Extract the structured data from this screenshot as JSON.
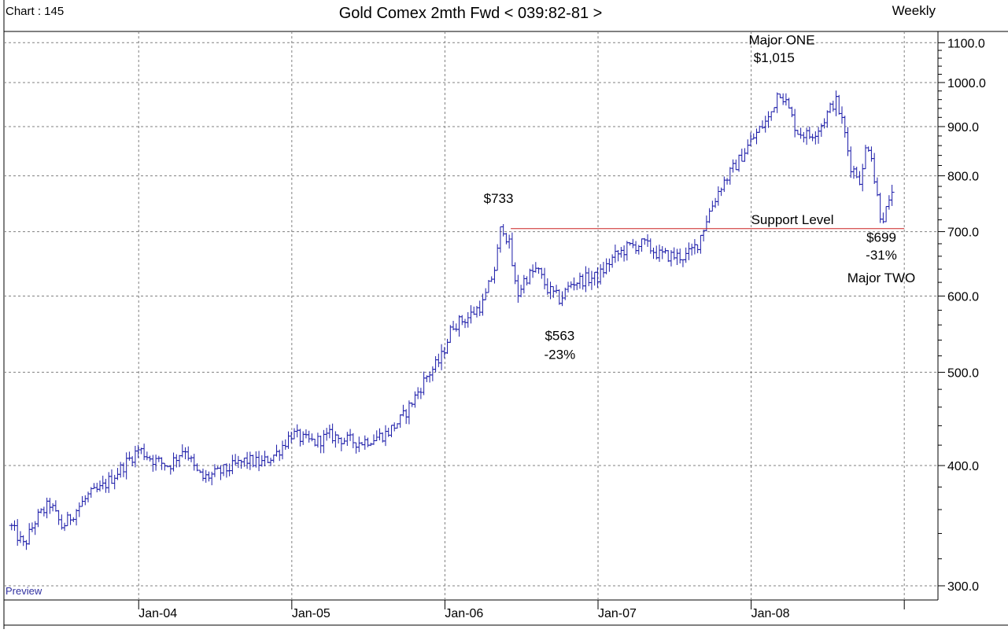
{
  "header": {
    "chart_id": "Chart : 145",
    "title": "Gold Comex 2mth Fwd < 039:82-81 >",
    "period": "Weekly"
  },
  "watermark": "Preview",
  "colors": {
    "bars": "#1a1aa8",
    "support": "#cc2222",
    "grid": "#808080",
    "text": "#000000",
    "watermark": "#3030a0"
  },
  "chart_data": {
    "type": "ohlc-bar",
    "title": "Gold Comex 2mth Fwd < 039:82-81 >",
    "yscale": "log",
    "ylim": [
      290,
      1130
    ],
    "y_ticks": [
      {
        "value": 300,
        "label": "300.0"
      },
      {
        "value": 400,
        "label": "400.0"
      },
      {
        "value": 500,
        "label": "500.0"
      },
      {
        "value": 600,
        "label": "600.0"
      },
      {
        "value": 700,
        "label": "700.0"
      },
      {
        "value": 800,
        "label": "800.0"
      },
      {
        "value": 900,
        "label": "900.0"
      },
      {
        "value": 1000,
        "label": "1000.0"
      },
      {
        "value": 1100,
        "label": "1100.0"
      }
    ],
    "x_ticks": [
      "Jan-04",
      "Jan-05",
      "Jan-06",
      "Jan-07",
      "Jan-08"
    ],
    "support_level": {
      "label": "Support Level",
      "value": 705
    },
    "annotations": [
      {
        "key": "major_one_label",
        "text": "Major ONE",
        "x": 2008.2,
        "y": 1095
      },
      {
        "key": "major_one_price",
        "text": "$1,015",
        "x": 2008.15,
        "y": 1050
      },
      {
        "key": "peak_733",
        "text": "$733",
        "x": 2006.35,
        "y": 750
      },
      {
        "key": "low_563",
        "text": "$563",
        "x": 2006.75,
        "y": 540
      },
      {
        "key": "pct_23",
        "text": "-23%",
        "x": 2006.75,
        "y": 516
      },
      {
        "key": "low_699",
        "text": "$699",
        "x": 2008.85,
        "y": 683
      },
      {
        "key": "pct_31",
        "text": "-31%",
        "x": 2008.85,
        "y": 655
      },
      {
        "key": "major_two",
        "text": "Major TWO",
        "x": 2008.85,
        "y": 620
      }
    ],
    "anchors": [
      [
        2003.17,
        345
      ],
      [
        2003.25,
        330
      ],
      [
        2003.33,
        352
      ],
      [
        2003.42,
        365
      ],
      [
        2003.5,
        345
      ],
      [
        2003.58,
        358
      ],
      [
        2003.67,
        372
      ],
      [
        2003.75,
        378
      ],
      [
        2003.85,
        392
      ],
      [
        2004.0,
        416
      ],
      [
        2004.1,
        405
      ],
      [
        2004.2,
        400
      ],
      [
        2004.3,
        418
      ],
      [
        2004.37,
        395
      ],
      [
        2004.42,
        388
      ],
      [
        2004.5,
        392
      ],
      [
        2004.6,
        398
      ],
      [
        2004.7,
        405
      ],
      [
        2004.8,
        402
      ],
      [
        2004.9,
        412
      ],
      [
        2005.0,
        432
      ],
      [
        2005.08,
        425
      ],
      [
        2005.15,
        423
      ],
      [
        2005.25,
        430
      ],
      [
        2005.35,
        425
      ],
      [
        2005.45,
        423
      ],
      [
        2005.55,
        428
      ],
      [
        2005.62,
        432
      ],
      [
        2005.72,
        448
      ],
      [
        2005.8,
        470
      ],
      [
        2005.88,
        495
      ],
      [
        2005.97,
        515
      ],
      [
        2006.05,
        560
      ],
      [
        2006.15,
        570
      ],
      [
        2006.25,
        590
      ],
      [
        2006.33,
        645
      ],
      [
        2006.37,
        715
      ],
      [
        2006.42,
        678
      ],
      [
        2006.47,
        600
      ],
      [
        2006.52,
        625
      ],
      [
        2006.6,
        640
      ],
      [
        2006.67,
        610
      ],
      [
        2006.75,
        595
      ],
      [
        2006.83,
        620
      ],
      [
        2006.92,
        625
      ],
      [
        2007.0,
        628
      ],
      [
        2007.1,
        658
      ],
      [
        2007.2,
        675
      ],
      [
        2007.3,
        680
      ],
      [
        2007.4,
        662
      ],
      [
        2007.5,
        660
      ],
      [
        2007.58,
        660
      ],
      [
        2007.65,
        680
      ],
      [
        2007.72,
        730
      ],
      [
        2007.8,
        780
      ],
      [
        2007.85,
        800
      ],
      [
        2007.92,
        830
      ],
      [
        2008.0,
        870
      ],
      [
        2008.08,
        905
      ],
      [
        2008.12,
        920
      ],
      [
        2008.18,
        985
      ],
      [
        2008.22,
        960
      ],
      [
        2008.3,
        890
      ],
      [
        2008.38,
        880
      ],
      [
        2008.45,
        900
      ],
      [
        2008.5,
        930
      ],
      [
        2008.55,
        960
      ],
      [
        2008.6,
        905
      ],
      [
        2008.65,
        820
      ],
      [
        2008.72,
        790
      ],
      [
        2008.75,
        860
      ],
      [
        2008.78,
        860
      ],
      [
        2008.8,
        800
      ],
      [
        2008.85,
        720
      ],
      [
        2008.9,
        745
      ],
      [
        2008.92,
        775
      ]
    ]
  }
}
